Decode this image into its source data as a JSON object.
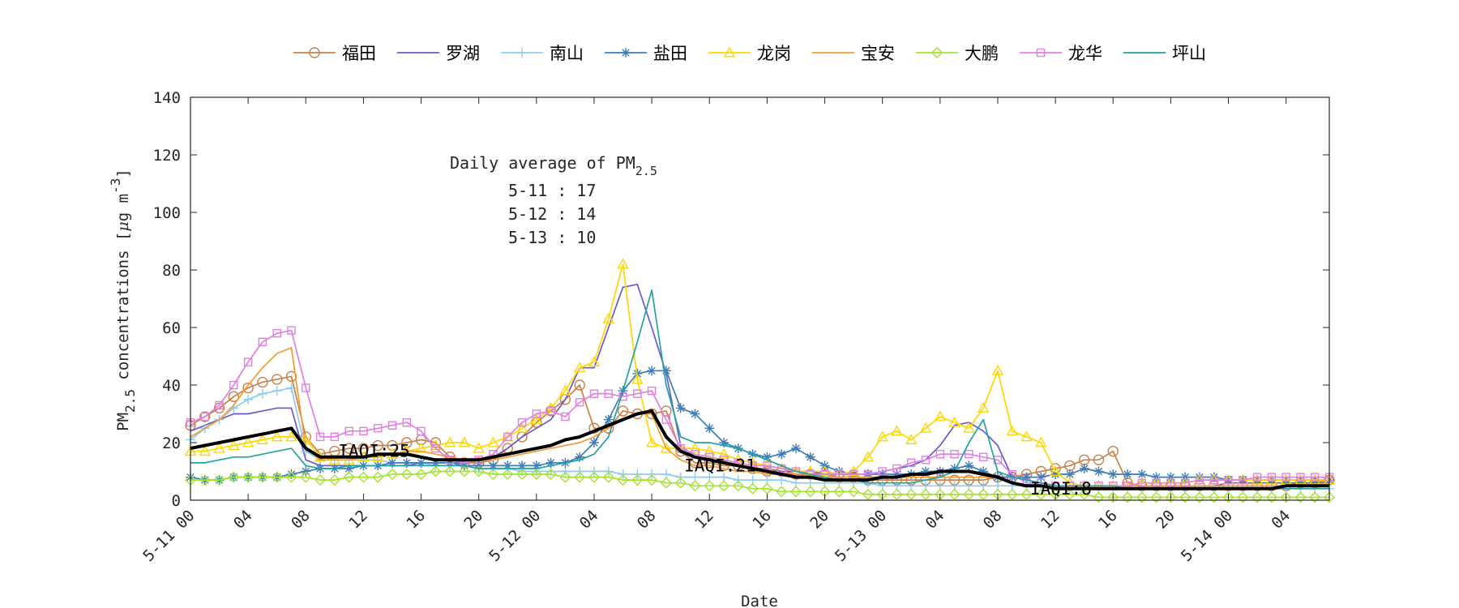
{
  "chart_data": {
    "type": "line",
    "xlabel": "Date",
    "ylabel": {
      "main": "PM",
      "sub": "2.5",
      "rest": " concentrations [",
      "mu": "μ",
      "unit": "g m",
      "sup": "-3",
      "close": "]"
    },
    "ylim": [
      0,
      140
    ],
    "yticks": [
      0,
      20,
      40,
      60,
      80,
      100,
      120,
      140
    ],
    "xlim": [
      0,
      79
    ],
    "x_unit": "hours since 5-11 00",
    "xticks": [
      {
        "x": 0,
        "label": "5-11 00"
      },
      {
        "x": 4,
        "label": "04"
      },
      {
        "x": 8,
        "label": "08"
      },
      {
        "x": 12,
        "label": "12"
      },
      {
        "x": 16,
        "label": "16"
      },
      {
        "x": 20,
        "label": "20"
      },
      {
        "x": 24,
        "label": "5-12 00"
      },
      {
        "x": 28,
        "label": "04"
      },
      {
        "x": 32,
        "label": "08"
      },
      {
        "x": 36,
        "label": "12"
      },
      {
        "x": 40,
        "label": "16"
      },
      {
        "x": 44,
        "label": "20"
      },
      {
        "x": 48,
        "label": "5-13 00"
      },
      {
        "x": 52,
        "label": "04"
      },
      {
        "x": 56,
        "label": "08"
      },
      {
        "x": 60,
        "label": "12"
      },
      {
        "x": 64,
        "label": "16"
      },
      {
        "x": 68,
        "label": "20"
      },
      {
        "x": 72,
        "label": "5-14 00"
      },
      {
        "x": 76,
        "label": "04"
      }
    ],
    "grid": false,
    "legend_position": "top",
    "annotation": {
      "title_main": "Daily average of PM",
      "title_sub": "2.5",
      "lines": [
        "5-11 : 17",
        "5-12 : 14",
        "5-13 : 10"
      ]
    },
    "iaqi_labels": [
      {
        "text": "IAQI:25",
        "x": 12.5,
        "y": 17
      },
      {
        "text": "IAQI:21",
        "x": 36.5,
        "y": 12
      },
      {
        "text": "IAQI:8",
        "x": 60.5,
        "y": 4
      }
    ],
    "series": [
      {
        "name": "福田",
        "color": "#c8804a",
        "marker": "circle",
        "marker_step": 1,
        "values": [
          26,
          29,
          32,
          36,
          39,
          41,
          42,
          43,
          22,
          16,
          17,
          18,
          18,
          19,
          19,
          20,
          21,
          20,
          15,
          13,
          13,
          14,
          18,
          22,
          27,
          31,
          35,
          40,
          25,
          25,
          31,
          30,
          30,
          31,
          17,
          13,
          13,
          12,
          12,
          11,
          10,
          10,
          9,
          9,
          9,
          8,
          8,
          7,
          7,
          7,
          7,
          7,
          7,
          7,
          7,
          7,
          8,
          8,
          9,
          10,
          11,
          12,
          14,
          14,
          17,
          6,
          5,
          5,
          5,
          5,
          5,
          5,
          5,
          5,
          5,
          5,
          5,
          6,
          6,
          7
        ]
      },
      {
        "name": "罗湖",
        "color": "#6a5acd",
        "marker": "none",
        "values": [
          24,
          26,
          28,
          30,
          30,
          31,
          32,
          32,
          14,
          12,
          12,
          12,
          12,
          12,
          12,
          12,
          13,
          13,
          13,
          13,
          14,
          15,
          18,
          22,
          25,
          28,
          35,
          46,
          46,
          60,
          74,
          75,
          60,
          44,
          19,
          15,
          14,
          13,
          12,
          11,
          11,
          10,
          10,
          10,
          9,
          9,
          9,
          9,
          10,
          11,
          12,
          14,
          19,
          26,
          27,
          24,
          19,
          8,
          7,
          6,
          5,
          5,
          5,
          5,
          5,
          5,
          5,
          5,
          5,
          5,
          5,
          5,
          6,
          6,
          6,
          6,
          6,
          6,
          6,
          6
        ]
      },
      {
        "name": "南山",
        "color": "#8ecbf0",
        "marker": "plus",
        "marker_step": 1,
        "values": [
          21,
          25,
          28,
          32,
          35,
          37,
          38,
          39,
          17,
          14,
          14,
          14,
          14,
          14,
          13,
          13,
          13,
          12,
          12,
          12,
          11,
          11,
          11,
          10,
          10,
          10,
          10,
          10,
          10,
          10,
          9,
          9,
          9,
          9,
          8,
          8,
          8,
          8,
          7,
          7,
          7,
          7,
          6,
          6,
          6,
          6,
          6,
          6,
          5,
          5,
          5,
          5,
          5,
          5,
          5,
          5,
          5,
          5,
          5,
          5,
          5,
          4,
          4,
          4,
          4,
          4,
          4,
          4,
          4,
          4,
          4,
          4,
          4,
          4,
          4,
          4,
          4,
          4,
          4,
          4
        ]
      },
      {
        "name": "盐田",
        "color": "#3f7db8",
        "marker": "star",
        "marker_step": 1,
        "values": [
          8,
          7,
          7,
          8,
          8,
          8,
          8,
          9,
          10,
          11,
          11,
          11,
          12,
          12,
          13,
          13,
          13,
          13,
          13,
          12,
          12,
          12,
          12,
          12,
          12,
          13,
          13,
          15,
          20,
          28,
          38,
          44,
          45,
          45,
          32,
          30,
          25,
          20,
          18,
          16,
          15,
          16,
          18,
          15,
          12,
          10,
          9,
          9,
          9,
          9,
          9,
          10,
          10,
          11,
          12,
          10,
          8,
          8,
          8,
          8,
          9,
          9,
          11,
          10,
          9,
          9,
          9,
          8,
          8,
          8,
          8,
          8,
          7,
          7,
          7,
          7,
          7,
          7,
          7,
          7
        ]
      },
      {
        "name": "龙岗",
        "color": "#ffd700",
        "marker": "triangle",
        "marker_step": 1,
        "values": [
          17,
          17,
          18,
          19,
          20,
          21,
          22,
          22,
          21,
          15,
          14,
          14,
          15,
          15,
          16,
          17,
          18,
          19,
          20,
          20,
          18,
          20,
          22,
          25,
          28,
          32,
          38,
          46,
          48,
          63,
          82,
          42,
          20,
          18,
          18,
          18,
          17,
          16,
          14,
          13,
          12,
          11,
          10,
          10,
          10,
          9,
          10,
          15,
          22,
          24,
          21,
          25,
          29,
          27,
          25,
          32,
          45,
          24,
          22,
          20,
          10,
          6,
          5,
          5,
          5,
          5,
          6,
          6,
          6,
          6,
          7,
          7,
          7,
          7,
          7,
          7,
          7,
          7,
          7,
          7
        ]
      },
      {
        "name": "宝安",
        "color": "#f39c33",
        "marker": "none",
        "values": [
          22,
          25,
          28,
          33,
          40,
          46,
          51,
          53,
          18,
          14,
          14,
          14,
          15,
          15,
          16,
          17,
          17,
          16,
          15,
          14,
          14,
          14,
          15,
          16,
          17,
          18,
          19,
          20,
          22,
          25,
          28,
          30,
          30,
          18,
          14,
          12,
          12,
          11,
          10,
          10,
          9,
          9,
          9,
          8,
          8,
          8,
          8,
          8,
          8,
          8,
          8,
          8,
          8,
          8,
          8,
          8,
          8,
          6,
          5,
          5,
          5,
          5,
          5,
          5,
          5,
          5,
          5,
          5,
          5,
          5,
          5,
          5,
          5,
          5,
          5,
          5,
          5,
          5,
          5,
          5
        ]
      },
      {
        "name": "大鹏",
        "color": "#a6e22e",
        "marker": "diamond",
        "marker_step": 1,
        "values": [
          7,
          7,
          7,
          8,
          8,
          8,
          8,
          8,
          8,
          7,
          7,
          8,
          8,
          8,
          9,
          9,
          9,
          10,
          10,
          10,
          10,
          9,
          9,
          9,
          9,
          9,
          8,
          8,
          8,
          8,
          7,
          7,
          7,
          6,
          6,
          5,
          5,
          5,
          5,
          4,
          4,
          3,
          3,
          3,
          3,
          3,
          3,
          2,
          2,
          2,
          2,
          2,
          2,
          2,
          2,
          2,
          2,
          2,
          2,
          2,
          2,
          2,
          2,
          1,
          1,
          1,
          1,
          1,
          1,
          1,
          1,
          1,
          1,
          1,
          1,
          1,
          1,
          1,
          1,
          1
        ]
      },
      {
        "name": "龙华",
        "color": "#e080e0",
        "marker": "square",
        "marker_step": 1,
        "values": [
          27,
          29,
          33,
          40,
          48,
          55,
          58,
          59,
          39,
          22,
          22,
          24,
          24,
          25,
          26,
          27,
          24,
          18,
          14,
          13,
          14,
          16,
          22,
          27,
          30,
          31,
          29,
          34,
          37,
          37,
          36,
          37,
          38,
          28,
          18,
          16,
          15,
          14,
          13,
          12,
          12,
          11,
          10,
          9,
          9,
          9,
          9,
          9,
          10,
          11,
          13,
          14,
          16,
          16,
          16,
          15,
          14,
          9,
          6,
          6,
          5,
          5,
          5,
          5,
          5,
          5,
          6,
          6,
          6,
          6,
          7,
          7,
          7,
          7,
          8,
          8,
          8,
          8,
          8,
          8
        ]
      },
      {
        "name": "坪山",
        "color": "#22a3a0",
        "marker": "none",
        "values": [
          13,
          13,
          14,
          15,
          15,
          16,
          17,
          18,
          12,
          11,
          11,
          12,
          12,
          12,
          12,
          12,
          12,
          12,
          12,
          12,
          11,
          11,
          11,
          11,
          11,
          12,
          13,
          14,
          16,
          22,
          38,
          55,
          73,
          40,
          22,
          20,
          20,
          19,
          18,
          16,
          14,
          12,
          10,
          9,
          8,
          7,
          7,
          6,
          6,
          6,
          6,
          7,
          8,
          10,
          20,
          28,
          10,
          8,
          7,
          6,
          5,
          5,
          5,
          5,
          5,
          4,
          4,
          4,
          4,
          4,
          4,
          4,
          4,
          4,
          4,
          4,
          4,
          4,
          4,
          4
        ]
      },
      {
        "name": "",
        "color": "#000000",
        "marker": "none",
        "linewidth": 4,
        "values": [
          18,
          19,
          20,
          21,
          22,
          23,
          24,
          25,
          18,
          15,
          15,
          15,
          15,
          16,
          16,
          16,
          15,
          14,
          14,
          14,
          14,
          15,
          16,
          17,
          18,
          19,
          21,
          22,
          24,
          26,
          28,
          30,
          31,
          22,
          17,
          15,
          14,
          13,
          12,
          11,
          10,
          9,
          8,
          8,
          7,
          7,
          7,
          7,
          8,
          8,
          9,
          9,
          10,
          10,
          10,
          9,
          8,
          6,
          5,
          5,
          4,
          4,
          4,
          4,
          4,
          4,
          4,
          4,
          4,
          4,
          4,
          4,
          4,
          4,
          4,
          4,
          5,
          5,
          5,
          5
        ]
      }
    ]
  }
}
